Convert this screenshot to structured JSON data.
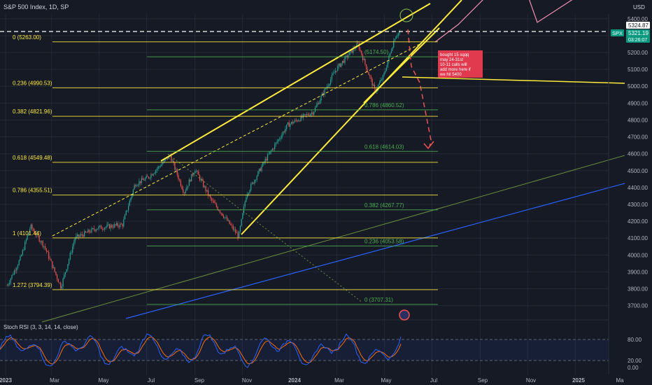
{
  "header": {
    "symbol_title": "S&P 500 Index, 1D, SP",
    "currency": "USD"
  },
  "price_tags": {
    "last_high": "5324.87",
    "ticker": "SPX",
    "last_price": "5321.19",
    "countdown": "03:26:07"
  },
  "indicator": {
    "title": "Stoch RSI (3, 3, 14, 14, close)",
    "axis_labels": [
      "80.00",
      "20.00",
      "0.00"
    ]
  },
  "annotation": {
    "lines": [
      "bought 15 sqqq",
      "may 24-31st",
      "10-11 calls will",
      "add more here if",
      "we hit 5400"
    ],
    "color": "#e13a4e"
  },
  "colors": {
    "background": "#161a25",
    "up_candle": "#26a69a",
    "down_candle": "#ef5350",
    "fib_yellow": "#ffeb3b",
    "fib_green": "#4caf50",
    "channel": "#ffeb3b",
    "blue_trend": "#2962ff",
    "pink_projection": "#f48fb1",
    "red_projection": "#ef5350",
    "stoch_k": "#2962ff",
    "stoch_d": "#ff6d00"
  },
  "chart_data": {
    "type": "candlestick",
    "title": "S&P 500 Index, 1D, SP",
    "y_axis_labels": [
      "5400.00",
      "5300.00",
      "5200.00",
      "5100.00",
      "5000.00",
      "4900.00",
      "4800.00",
      "4700.00",
      "4600.00",
      "4500.00",
      "4400.00",
      "4300.00",
      "4200.00",
      "4100.00",
      "4000.00",
      "3900.00",
      "3800.00",
      "3700.00"
    ],
    "x_axis_labels": [
      "2023",
      "Mar",
      "May",
      "Jul",
      "Sep",
      "Nov",
      "2024",
      "Mar",
      "May",
      "Jul",
      "Sep",
      "Nov",
      "2025",
      "Ma"
    ],
    "ylim": [
      3650,
      5460
    ],
    "last_price": 5321.19,
    "fib_left": [
      {
        "label": "0 (5263.00)",
        "value": 5263.0
      },
      {
        "label": "0.236 (4990.53)",
        "value": 4990.53
      },
      {
        "label": "0.382 (4821.96)",
        "value": 4821.96
      },
      {
        "label": "0.618 (4549.48)",
        "value": 4549.48
      },
      {
        "label": "0.786 (4355.51)",
        "value": 4355.51
      },
      {
        "label": "1 (4101.44)",
        "value": 4101.44
      },
      {
        "label": "1.272 (3794.39)",
        "value": 3794.39
      }
    ],
    "fib_right": [
      {
        "label": "(5174.50)",
        "value": 5174.5
      },
      {
        "label": "0.786 (4860.52)",
        "value": 4860.52
      },
      {
        "label": "0.618 (4614.03)",
        "value": 4614.03
      },
      {
        "label": "0.382 (4267.77)",
        "value": 4267.77
      },
      {
        "label": "0.236 (4053.58)",
        "value": 4053.58
      },
      {
        "label": "0 (3707.31)",
        "value": 3707.31
      }
    ],
    "price_path": [
      {
        "date": "2023-01-03",
        "close": 3820
      },
      {
        "date": "2023-01-20",
        "close": 3980
      },
      {
        "date": "2023-02-02",
        "close": 4170
      },
      {
        "date": "2023-02-20",
        "close": 4050
      },
      {
        "date": "2023-03-13",
        "close": 3810
      },
      {
        "date": "2023-03-31",
        "close": 4100
      },
      {
        "date": "2023-04-28",
        "close": 4160
      },
      {
        "date": "2023-05-31",
        "close": 4180
      },
      {
        "date": "2023-06-16",
        "close": 4420
      },
      {
        "date": "2023-07-03",
        "close": 4460
      },
      {
        "date": "2023-07-31",
        "close": 4590
      },
      {
        "date": "2023-08-18",
        "close": 4370
      },
      {
        "date": "2023-09-01",
        "close": 4510
      },
      {
        "date": "2023-09-21",
        "close": 4330
      },
      {
        "date": "2023-10-05",
        "close": 4250
      },
      {
        "date": "2023-10-27",
        "close": 4110
      },
      {
        "date": "2023-11-06",
        "close": 4360
      },
      {
        "date": "2023-11-30",
        "close": 4560
      },
      {
        "date": "2023-12-29",
        "close": 4770
      },
      {
        "date": "2024-01-31",
        "close": 4850
      },
      {
        "date": "2024-02-29",
        "close": 5100
      },
      {
        "date": "2024-03-28",
        "close": 5250
      },
      {
        "date": "2024-04-19",
        "close": 4970
      },
      {
        "date": "2024-04-30",
        "close": 5060
      },
      {
        "date": "2024-05-15",
        "close": 5300
      },
      {
        "date": "2024-05-21",
        "close": 5321
      }
    ],
    "stoch_rsi": {
      "levels": [
        80,
        20,
        0
      ],
      "ylim": [
        -10,
        100
      ]
    }
  }
}
